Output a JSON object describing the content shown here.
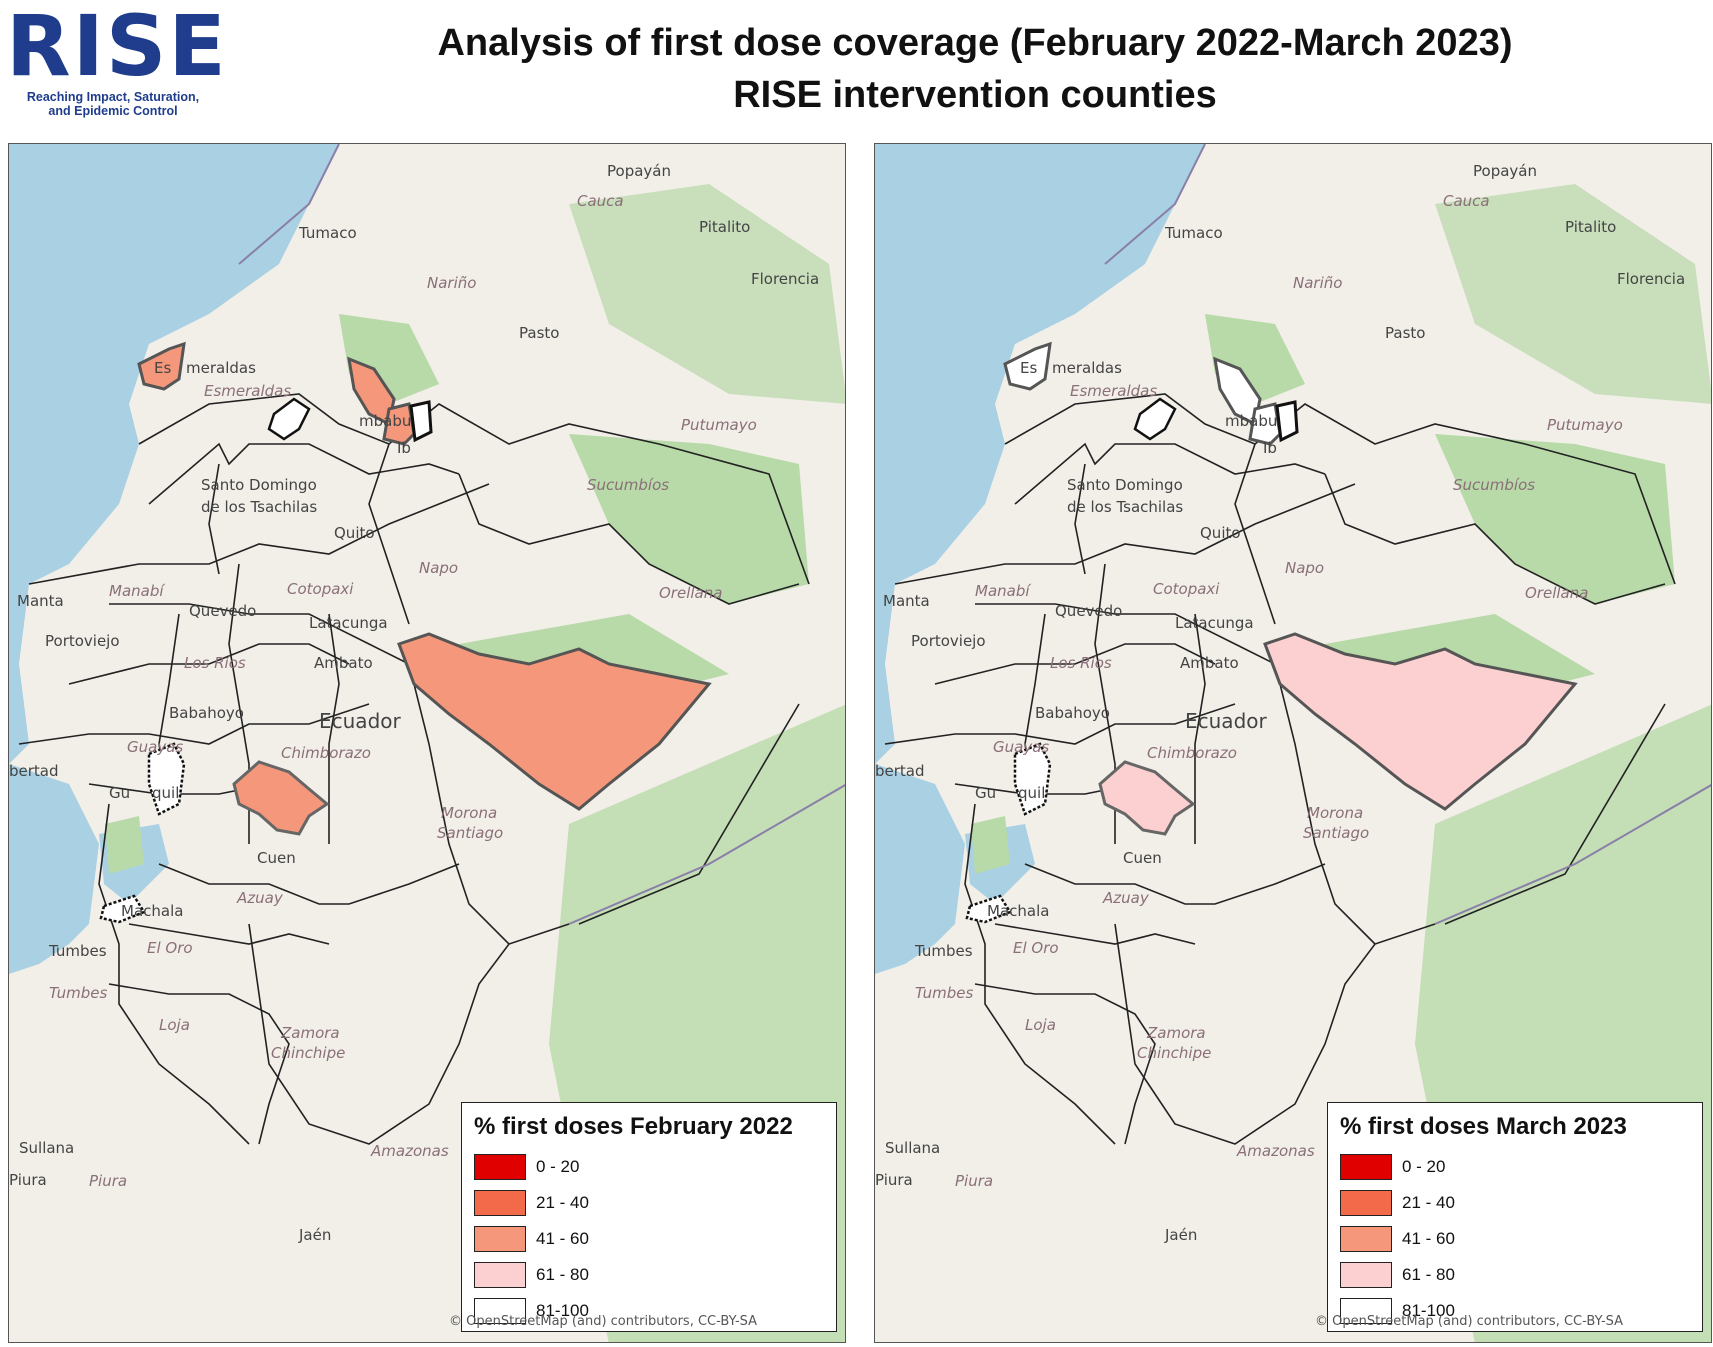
{
  "logo": {
    "word": "RISE",
    "tagline_1": "Reaching Impact, Saturation,",
    "tagline_2": "and Epidemic Control"
  },
  "title": {
    "line1": "Analysis of first dose coverage (February 2022-March 2023)",
    "line2": "RISE intervention counties"
  },
  "colors": {
    "c0_20": "#e00000",
    "c21_40": "#f26a4a",
    "c41_60": "#f5977a",
    "c61_80": "#fcd0d0",
    "c81_100": "#ffffff",
    "water": "#a9d0e3",
    "land": "#f2efe9",
    "forest": "#b8d9a8"
  },
  "labels": {
    "cities": [
      "Popayán",
      "Pitalito",
      "Florencia",
      "Tumaco",
      "Pasto",
      "Quito",
      "Manta",
      "Portoviejo",
      "Quevedo",
      "Latacunga",
      "Ambato",
      "Babahoyo",
      "Machala",
      "Tumbes",
      "Sullana",
      "Piura",
      "Jaén",
      "bertad",
      "Ib"
    ],
    "provinces": [
      "Cauca",
      "Nariño",
      "Putumayo",
      "Sucumbíos",
      "Esmeraldas",
      "Manabí",
      "Cotopaxi",
      "Napo",
      "Orellana",
      "Los Ríos",
      "Chimborazo",
      "Guayas",
      "El Oro",
      "Tumbes",
      "Loja",
      "Azuay",
      "Zamora",
      "Chinchipe",
      "Morona",
      "Santiago",
      "Amazonas",
      "Piura"
    ],
    "partial": [
      "Es",
      "meraldas",
      "mbabu",
      "Santo Domingo",
      "de los Tsachilas",
      "Gu",
      "quil",
      "Cuen",
      "Ecuador"
    ]
  },
  "maps": [
    {
      "legend_title": "% first doses February 2022",
      "fills": {
        "esmeraldas": "c41_60",
        "north": "c81_100",
        "imbabura": "c41_60",
        "ibarra": "c41_60",
        "ibarra_east": "c81_100",
        "cuenca": "c41_60",
        "orellana_south": "c41_60"
      }
    },
    {
      "legend_title": "% first doses March 2023",
      "fills": {
        "esmeraldas": "c81_100",
        "north": "c81_100",
        "imbabura": "c81_100",
        "ibarra": "c81_100",
        "ibarra_east": "c81_100",
        "cuenca": "c61_80",
        "orellana_south": "c61_80"
      }
    }
  ],
  "legend": {
    "ranges": [
      {
        "label": "0 - 20",
        "color": "c0_20"
      },
      {
        "label": "21 - 40",
        "color": "c21_40"
      },
      {
        "label": "41 - 60",
        "color": "c41_60"
      },
      {
        "label": "61 - 80",
        "color": "c61_80"
      },
      {
        "label": "81-100",
        "color": "c81_100"
      }
    ]
  },
  "attribution": "© OpenStreetMap (and) contributors, CC-BY-SA"
}
